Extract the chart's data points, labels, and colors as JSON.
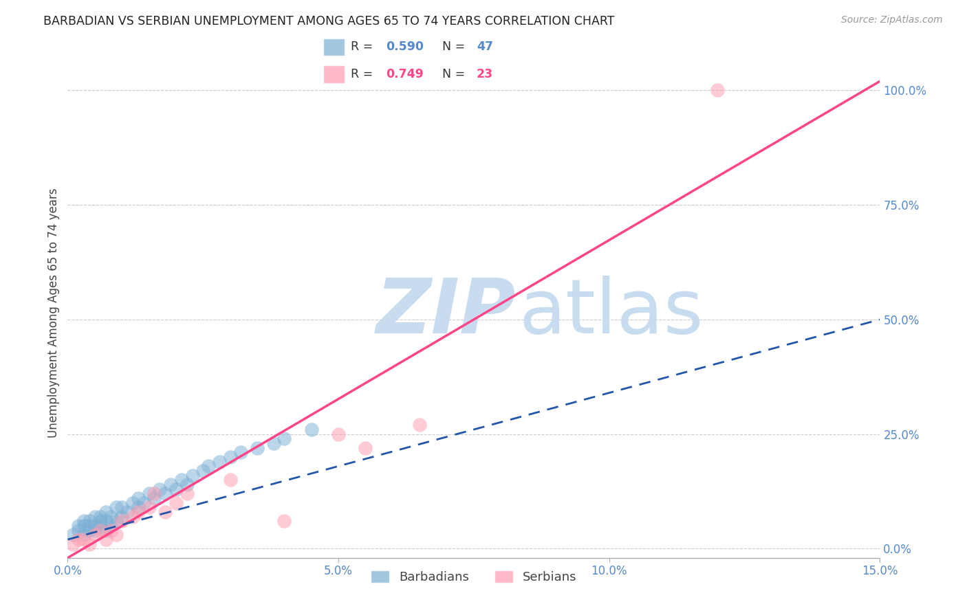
{
  "title": "BARBADIAN VS SERBIAN UNEMPLOYMENT AMONG AGES 65 TO 74 YEARS CORRELATION CHART",
  "source": "Source: ZipAtlas.com",
  "ylabel": "Unemployment Among Ages 65 to 74 years",
  "xlabel_ticks": [
    "0.0%",
    "5.0%",
    "10.0%",
    "15.0%"
  ],
  "xlabel_vals": [
    0.0,
    0.05,
    0.1,
    0.15
  ],
  "ylabel_ticks": [
    "0.0%",
    "25.0%",
    "50.0%",
    "75.0%",
    "100.0%"
  ],
  "ylabel_vals": [
    0.0,
    0.25,
    0.5,
    0.75,
    1.0
  ],
  "xlim": [
    0.0,
    0.15
  ],
  "ylim": [
    -0.02,
    1.05
  ],
  "barbadian_r": 0.59,
  "barbadian_n": 47,
  "serbian_r": 0.749,
  "serbian_n": 23,
  "barbadian_color": "#7BAFD4",
  "serbian_color": "#FF9BAD",
  "barbadian_line_color": "#2255AA",
  "serbian_line_color": "#FF4488",
  "barbadian_line_style": "--",
  "serbian_line_style": "-",
  "watermark_zip_color": "#C8DCF0",
  "watermark_atlas_color": "#C8DCF0",
  "barbadian_x": [
    0.001,
    0.002,
    0.002,
    0.003,
    0.003,
    0.003,
    0.004,
    0.004,
    0.004,
    0.005,
    0.005,
    0.005,
    0.006,
    0.006,
    0.006,
    0.007,
    0.007,
    0.007,
    0.008,
    0.008,
    0.009,
    0.009,
    0.01,
    0.01,
    0.011,
    0.012,
    0.013,
    0.013,
    0.014,
    0.015,
    0.016,
    0.017,
    0.018,
    0.019,
    0.02,
    0.021,
    0.022,
    0.023,
    0.025,
    0.026,
    0.028,
    0.03,
    0.032,
    0.035,
    0.038,
    0.04,
    0.045
  ],
  "barbadian_y": [
    0.03,
    0.04,
    0.05,
    0.03,
    0.05,
    0.06,
    0.04,
    0.05,
    0.06,
    0.04,
    0.05,
    0.07,
    0.05,
    0.06,
    0.07,
    0.04,
    0.06,
    0.08,
    0.05,
    0.07,
    0.06,
    0.09,
    0.07,
    0.09,
    0.08,
    0.1,
    0.09,
    0.11,
    0.1,
    0.12,
    0.11,
    0.13,
    0.12,
    0.14,
    0.13,
    0.15,
    0.14,
    0.16,
    0.17,
    0.18,
    0.19,
    0.2,
    0.21,
    0.22,
    0.23,
    0.24,
    0.26
  ],
  "serbian_x": [
    0.001,
    0.002,
    0.003,
    0.004,
    0.005,
    0.006,
    0.007,
    0.008,
    0.009,
    0.01,
    0.012,
    0.013,
    0.015,
    0.016,
    0.018,
    0.02,
    0.022,
    0.03,
    0.04,
    0.05,
    0.055,
    0.065,
    0.12
  ],
  "serbian_y": [
    0.01,
    0.02,
    0.02,
    0.01,
    0.03,
    0.04,
    0.02,
    0.04,
    0.03,
    0.06,
    0.07,
    0.08,
    0.09,
    0.12,
    0.08,
    0.1,
    0.12,
    0.15,
    0.06,
    0.25,
    0.22,
    0.27,
    1.0
  ],
  "serbian_line_x0": 0.0,
  "serbian_line_x1": 0.15,
  "serbian_line_y0": -0.02,
  "serbian_line_y1": 1.02,
  "barbadian_line_x0": 0.0,
  "barbadian_line_x1": 0.15,
  "barbadian_line_y0": 0.02,
  "barbadian_line_y1": 0.5
}
